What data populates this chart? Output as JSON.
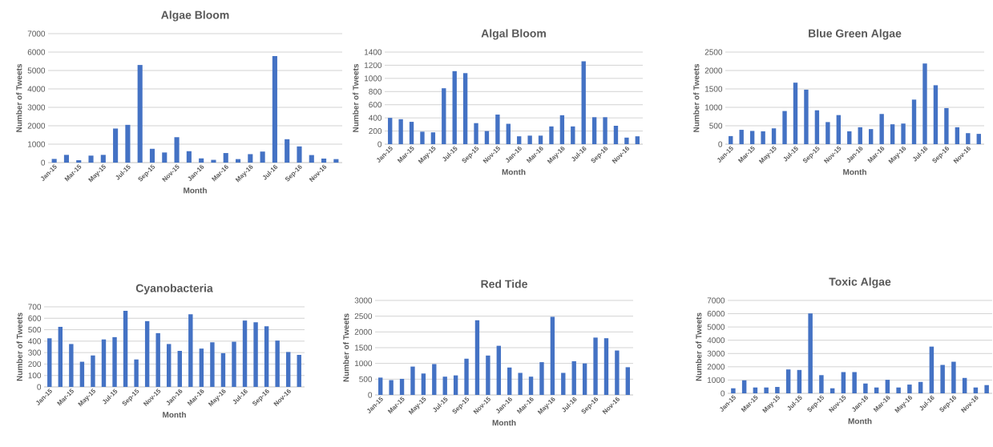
{
  "chart_data": [
    {
      "type": "bar",
      "title": "Algae Bloom",
      "xlabel": "Month",
      "ylabel": "Number of Tweets",
      "categories": [
        "Jan-15",
        null,
        "Mar-15",
        null,
        "May-15",
        null,
        "Jul-15",
        null,
        "Sep-15",
        null,
        "Nov-15",
        null,
        "Jan-16",
        null,
        "Mar-16",
        null,
        "May-16",
        null,
        "Jul-16",
        null,
        "Sep-16",
        null,
        "Nov-16",
        null
      ],
      "values": [
        200,
        420,
        130,
        380,
        420,
        1850,
        2050,
        5300,
        750,
        550,
        1380,
        620,
        230,
        150,
        520,
        190,
        460,
        600,
        5780,
        1270,
        880,
        410,
        220,
        190
      ],
      "color": "#4472c4",
      "ylim": [
        0,
        7000
      ],
      "yticks": [
        0,
        1000,
        2000,
        3000,
        4000,
        5000,
        6000,
        7000
      ],
      "grid": "y"
    },
    {
      "type": "bar",
      "title": "Algal Bloom",
      "xlabel": "Month",
      "ylabel": "Number of Tweets",
      "categories": [
        "Jan-15",
        null,
        "Mar-15",
        null,
        "May-15",
        null,
        "Jul-15",
        null,
        "Sep-15",
        null,
        "Nov-15",
        null,
        "Jan-16",
        null,
        "Mar-16",
        null,
        "May-16",
        null,
        "Jul-16",
        null,
        "Sep-16",
        null,
        "Nov-16",
        null
      ],
      "values": [
        400,
        380,
        340,
        190,
        180,
        850,
        1110,
        1080,
        320,
        200,
        450,
        310,
        120,
        130,
        130,
        270,
        440,
        270,
        1260,
        410,
        410,
        280,
        100,
        120
      ],
      "color": "#4472c4",
      "ylim": [
        0,
        1400
      ],
      "yticks": [
        0,
        200,
        400,
        600,
        800,
        1000,
        1200,
        1400
      ],
      "grid": "y"
    },
    {
      "type": "bar",
      "title": "Blue Green Algae",
      "xlabel": "Month",
      "ylabel": "Number of Tweets",
      "categories": [
        "Jan-15",
        null,
        "Mar-15",
        null,
        "May-15",
        null,
        "Jul-15",
        null,
        "Sep-15",
        null,
        "Nov-15",
        null,
        "Jan-16",
        null,
        "Mar-16",
        null,
        "May-16",
        null,
        "Jul-16",
        null,
        "Sep-16",
        null,
        "Nov-16",
        null
      ],
      "values": [
        220,
        390,
        360,
        350,
        430,
        900,
        1670,
        1480,
        920,
        600,
        790,
        350,
        460,
        410,
        820,
        540,
        560,
        1210,
        2190,
        1600,
        980,
        460,
        300,
        280
      ],
      "color": "#4472c4",
      "ylim": [
        0,
        2500
      ],
      "yticks": [
        0,
        500,
        1000,
        1500,
        2000,
        2500
      ],
      "grid": "y"
    },
    {
      "type": "bar",
      "title": "Cyanobacteria",
      "xlabel": "Month",
      "ylabel": "Number of Tweets",
      "categories": [
        "Jan-15",
        null,
        "Mar-15",
        null,
        "May-15",
        null,
        "Jul-15",
        null,
        "Sep-15",
        null,
        "Nov-15",
        null,
        "Jan-16",
        null,
        "Mar-16",
        null,
        "May-16",
        null,
        "Jul-16",
        null,
        "Sep-16",
        null,
        "Nov-16",
        null
      ],
      "values": [
        425,
        525,
        375,
        220,
        275,
        415,
        435,
        665,
        240,
        575,
        470,
        375,
        315,
        635,
        335,
        390,
        295,
        395,
        580,
        565,
        530,
        405,
        305,
        280
      ],
      "color": "#4472c4",
      "ylim": [
        0,
        700
      ],
      "yticks": [
        0,
        100,
        200,
        300,
        400,
        500,
        600,
        700
      ],
      "grid": "y"
    },
    {
      "type": "bar",
      "title": "Red Tide",
      "xlabel": "Month",
      "ylabel": "Number of Tweets",
      "categories": [
        "Jan-15",
        null,
        "Mar-15",
        null,
        "May-15",
        null,
        "Jul-15",
        null,
        "Sep-15",
        null,
        "Nov-15",
        null,
        "Jan-16",
        null,
        "Mar-16",
        null,
        "May-16",
        null,
        "Jul-16",
        null,
        "Sep-16",
        null,
        "Nov-16",
        null
      ],
      "values": [
        550,
        470,
        510,
        900,
        680,
        980,
        580,
        620,
        1150,
        2370,
        1250,
        1560,
        870,
        700,
        580,
        1040,
        2480,
        700,
        1070,
        1000,
        1820,
        1800,
        1410,
        880
      ],
      "color": "#4472c4",
      "ylim": [
        0,
        3000
      ],
      "yticks": [
        0,
        500,
        1000,
        1500,
        2000,
        2500,
        3000
      ],
      "grid": "y"
    },
    {
      "type": "bar",
      "title": "Toxic Algae",
      "xlabel": "Month",
      "ylabel": "Number of Tweets",
      "categories": [
        "Jan-15",
        null,
        "Mar-15",
        null,
        "May-15",
        null,
        "Jul-15",
        null,
        "Sep-15",
        null,
        "Nov-15",
        null,
        "Jan-16",
        null,
        "Mar-16",
        null,
        "May-16",
        null,
        "Jul-16",
        null,
        "Sep-16",
        null,
        "Nov-16",
        null
      ],
      "values": [
        380,
        980,
        440,
        440,
        480,
        1800,
        1760,
        6020,
        1370,
        380,
        1600,
        1600,
        740,
        440,
        1020,
        440,
        660,
        860,
        3520,
        2140,
        2380,
        1160,
        440,
        620
      ],
      "color": "#4472c4",
      "ylim": [
        0,
        7000
      ],
      "yticks": [
        0,
        1000,
        2000,
        3000,
        4000,
        5000,
        6000,
        7000
      ],
      "grid": "y"
    }
  ]
}
